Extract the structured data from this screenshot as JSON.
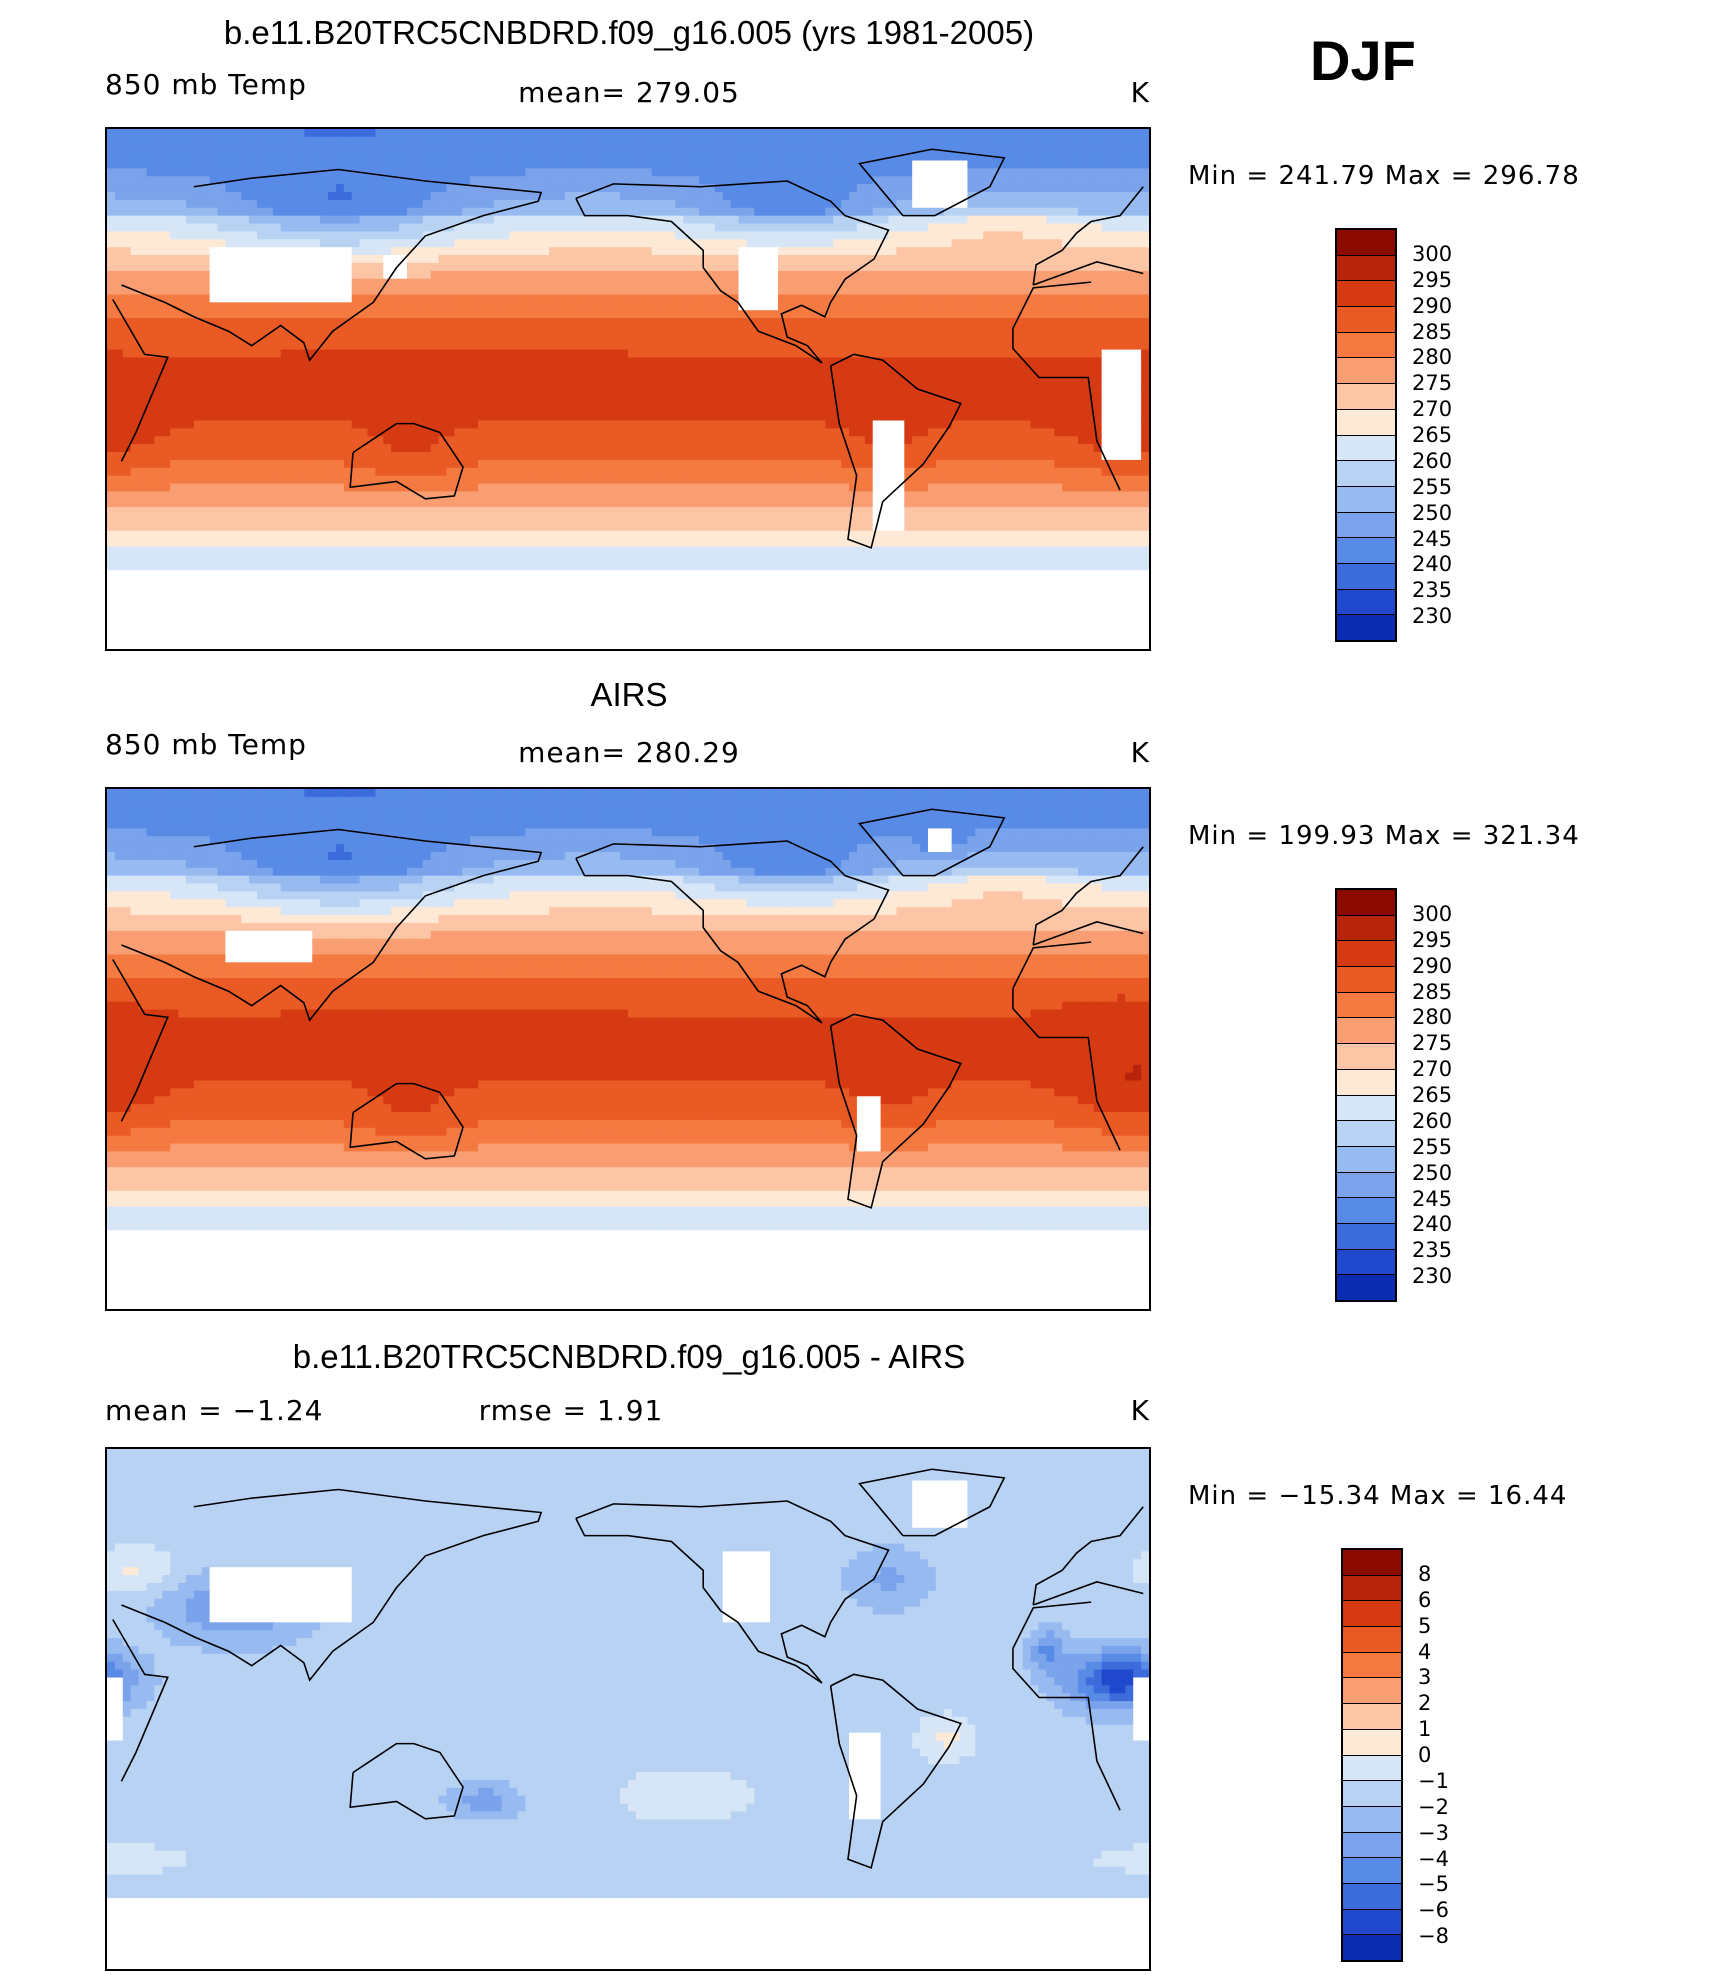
{
  "season": "DJF",
  "panels": [
    {
      "id": "model",
      "title": "b.e11.B20TRC5CNBDRD.f09_g16.005 (yrs 1981-2005)",
      "left_label": "850 mb Temp",
      "center_label": "mean= 279.05",
      "right_label": "K",
      "minmax": "Min = 241.79 Max = 296.78",
      "colorbar": {
        "labels": [
          "300",
          "295",
          "290",
          "285",
          "280",
          "275",
          "270",
          "265",
          "260",
          "255",
          "250",
          "245",
          "240",
          "235",
          "230"
        ],
        "colors": [
          "#8b0a00",
          "#b5240b",
          "#d63a13",
          "#ea5a24",
          "#f47a42",
          "#f99e72",
          "#fcc6a6",
          "#fee9d6",
          "#d7e6f7",
          "#b8d2f4",
          "#97bbf1",
          "#7aa3ec",
          "#588be6",
          "#3c6bdc",
          "#2048cc",
          "#0b2bb0",
          "#001a8a"
        ],
        "range": [
          225,
          305
        ]
      }
    },
    {
      "id": "obs",
      "title": "AIRS",
      "left_label": "850 mb Temp",
      "center_label": "mean= 280.29",
      "right_label": "K",
      "minmax": "Min = 199.93 Max = 321.34",
      "colorbar": {
        "labels": [
          "300",
          "295",
          "290",
          "285",
          "280",
          "275",
          "270",
          "265",
          "260",
          "255",
          "250",
          "245",
          "240",
          "235",
          "230"
        ],
        "colors": [
          "#8b0a00",
          "#b5240b",
          "#d63a13",
          "#ea5a24",
          "#f47a42",
          "#f99e72",
          "#fcc6a6",
          "#fee9d6",
          "#d7e6f7",
          "#b8d2f4",
          "#97bbf1",
          "#7aa3ec",
          "#588be6",
          "#3c6bdc",
          "#2048cc",
          "#0b2bb0",
          "#001a8a"
        ],
        "range": [
          225,
          305
        ]
      }
    },
    {
      "id": "diff",
      "title": "b.e11.B20TRC5CNBDRD.f09_g16.005 - AIRS",
      "left_label": "mean = −1.24",
      "center_label": "rmse = 1.91",
      "right_label": "K",
      "minmax": "Min = −15.34 Max = 16.44",
      "colorbar": {
        "labels": [
          "8",
          "6",
          "5",
          "4",
          "3",
          "2",
          "1",
          "0",
          "−1",
          "−2",
          "−3",
          "−4",
          "−5",
          "−6",
          "−8"
        ],
        "colors": [
          "#8b0a00",
          "#b5240b",
          "#d63a13",
          "#ea5a24",
          "#f47a42",
          "#f99e72",
          "#fcc6a6",
          "#fee9d6",
          "#d7e6f7",
          "#b8d2f4",
          "#97bbf1",
          "#7aa3ec",
          "#588be6",
          "#3c6bdc",
          "#2048cc",
          "#0b2bb0",
          "#001a8a"
        ],
        "range": [
          -10,
          10
        ]
      }
    }
  ]
}
